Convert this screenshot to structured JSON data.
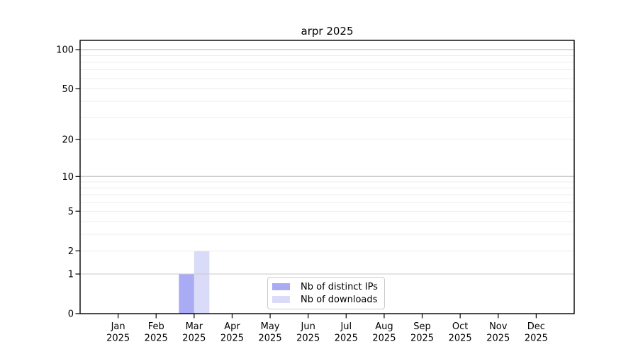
{
  "chart_data": {
    "type": "bar",
    "title": "arpr 2025",
    "categories": [
      "Jan",
      "Feb",
      "Mar",
      "Apr",
      "May",
      "Jun",
      "Jul",
      "Aug",
      "Sep",
      "Oct",
      "Nov",
      "Dec"
    ],
    "category_year": "2025",
    "series": [
      {
        "name": "Nb of distinct IPs",
        "color": "#a9abf5",
        "values": [
          0,
          0,
          1,
          0,
          0,
          0,
          0,
          0,
          0,
          0,
          0,
          0
        ]
      },
      {
        "name": "Nb of downloads",
        "color": "#d9dbf8",
        "values": [
          0,
          0,
          2,
          0,
          0,
          0,
          0,
          0,
          0,
          0,
          0,
          0
        ]
      }
    ],
    "yscale": "log1p",
    "ylim": [
      0,
      118
    ],
    "ytick_labels": [
      0,
      1,
      2,
      5,
      10,
      20,
      50,
      100
    ],
    "grid_major_values": [
      1,
      10,
      100
    ],
    "grid_minor_values": [
      2,
      3,
      4,
      5,
      6,
      7,
      8,
      9,
      20,
      30,
      40,
      50,
      60,
      70,
      80,
      90
    ],
    "grid": true,
    "legend_position": "lower center",
    "xlabel": "",
    "ylabel": ""
  },
  "colors": {
    "background": "#ffffff",
    "bar_distinct_ips": "#a9abf5",
    "bar_downloads": "#d9dbf8",
    "grid_major": "#c9c9c9",
    "grid_minor": "#ededed",
    "spine": "#000000",
    "text": "#000000",
    "legend_border": "#cccccc"
  }
}
